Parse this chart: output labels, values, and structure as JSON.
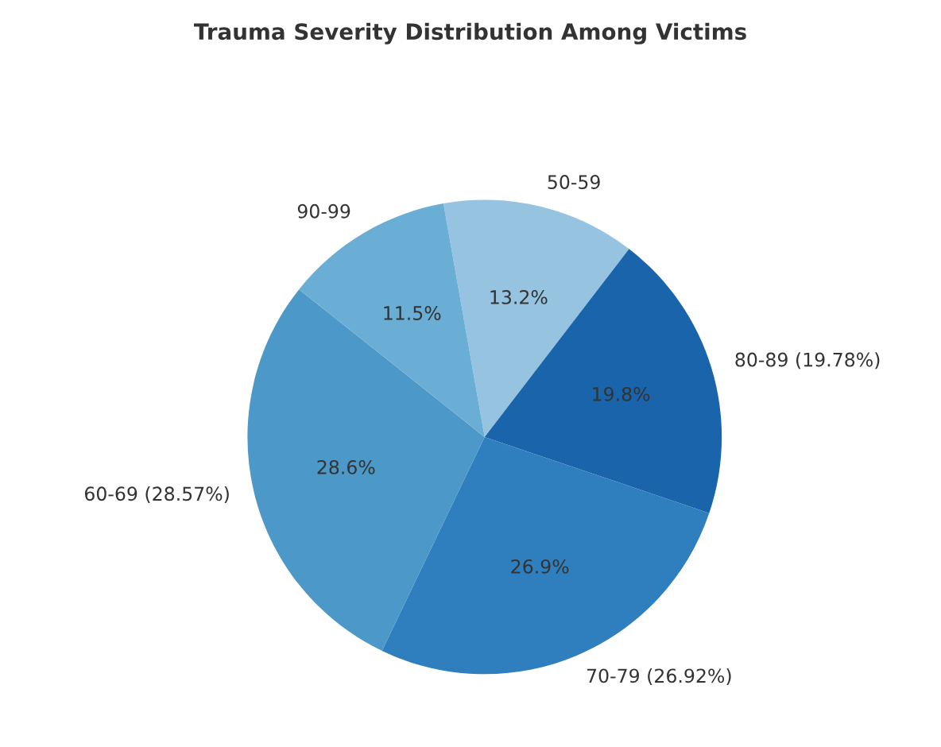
{
  "chart_data": {
    "type": "pie",
    "title": "Trauma Severity Distribution Among Victims",
    "categories": [
      "50-59",
      "80-89 (19.78%)",
      "70-79 (26.92%)",
      "60-69 (28.57%)",
      "90-99"
    ],
    "values": [
      13.2,
      19.78,
      26.92,
      28.57,
      11.53
    ],
    "value_labels": [
      "13.2%",
      "19.8%",
      "26.9%",
      "28.6%",
      "11.5%"
    ],
    "colors": [
      "#95c3e0",
      "#1a64ab",
      "#2f7ebd",
      "#4c98c9",
      "#6aaed6"
    ]
  }
}
